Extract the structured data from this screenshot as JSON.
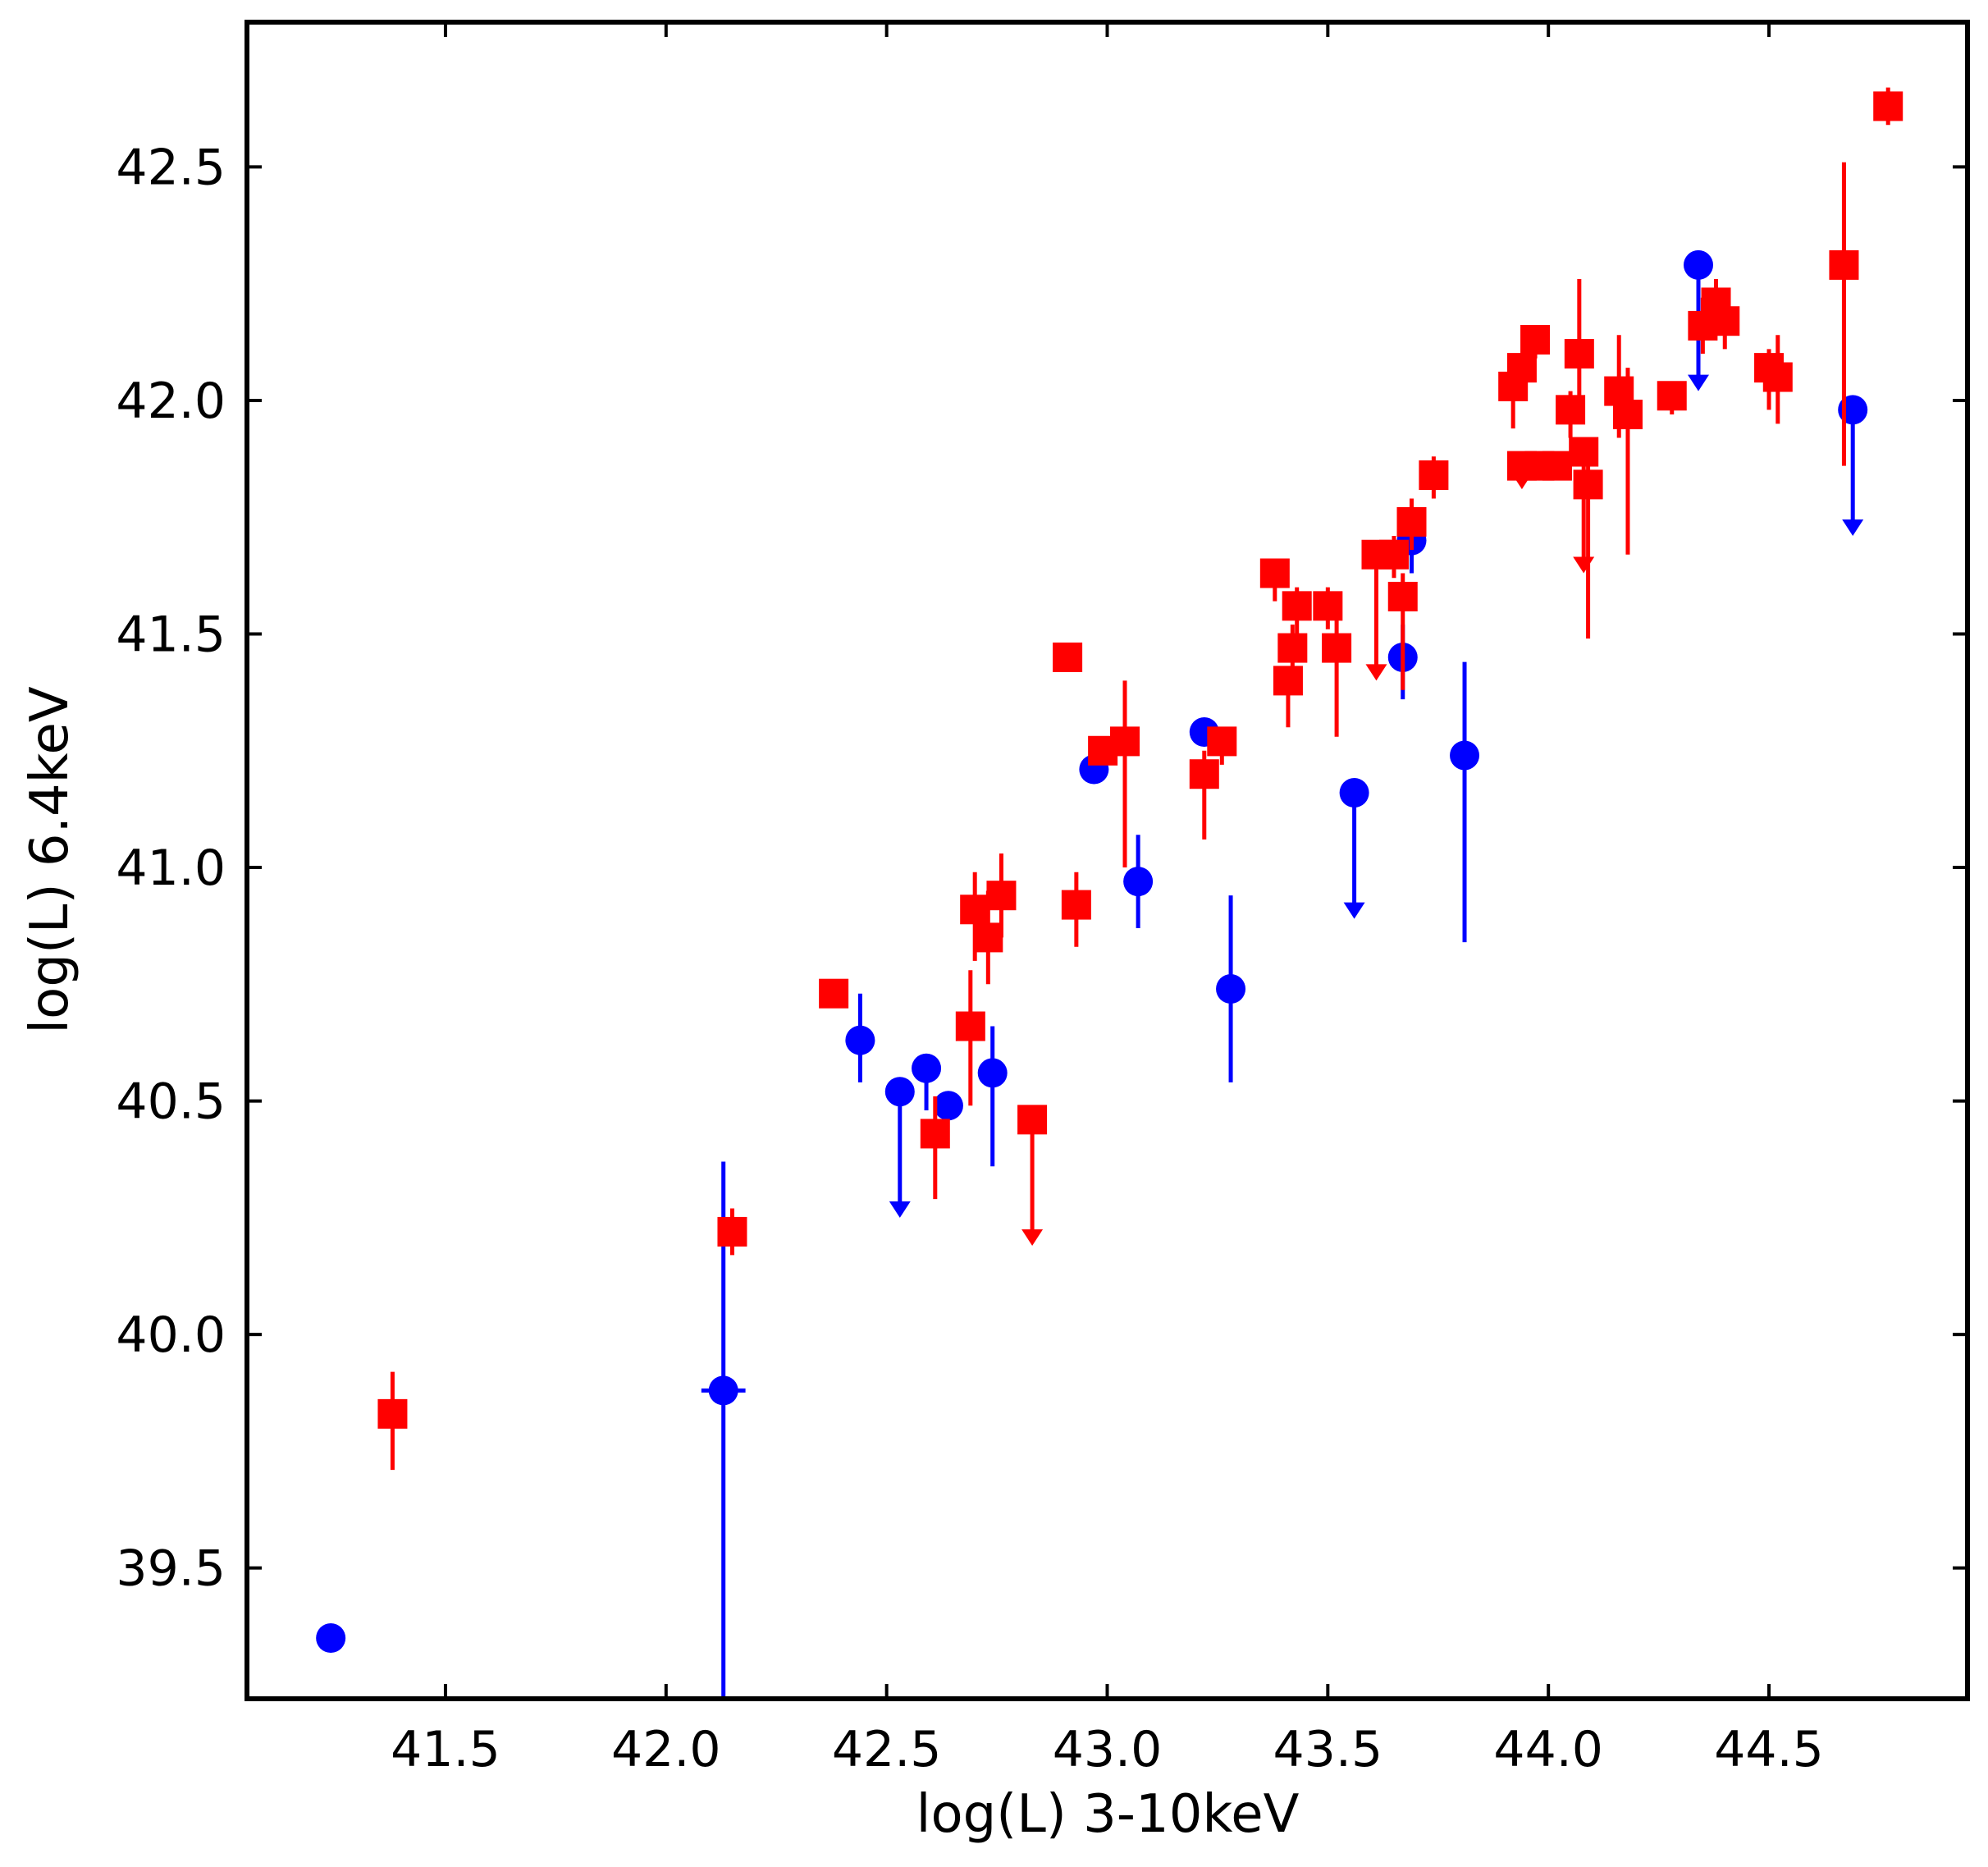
{
  "chart_data": {
    "type": "scatter",
    "xlabel": "log(L) 3-10keV",
    "ylabel": "log(L) 6.4keV",
    "xlim": [
      41.05,
      44.95
    ],
    "ylim": [
      39.22,
      42.81
    ],
    "xticks": [
      "41.5",
      "42.0",
      "42.5",
      "43.0",
      "43.5",
      "44.0",
      "44.5"
    ],
    "yticks": [
      "39.5",
      "40.0",
      "40.5",
      "41.0",
      "41.5",
      "42.0",
      "42.5"
    ],
    "grid": false,
    "legend": "none",
    "series": [
      {
        "marker": "circle",
        "color": "#0000ff",
        "points": [
          {
            "x": 41.24,
            "y": 39.35
          },
          {
            "x": 42.13,
            "y": 39.88,
            "ylo": 39.22,
            "yhi": 40.37,
            "xlo": 42.08,
            "xhi": 42.18
          },
          {
            "x": 42.44,
            "y": 40.63,
            "ylo": 40.54,
            "yhi": 40.73
          },
          {
            "x": 42.53,
            "y": 40.52,
            "upper_limit": true,
            "ylo": 40.25
          },
          {
            "x": 42.59,
            "y": 40.57,
            "ylo": 40.48,
            "yhi": 40.58
          },
          {
            "x": 42.64,
            "y": 40.49
          },
          {
            "x": 42.74,
            "y": 40.56,
            "ylo": 40.36,
            "yhi": 40.66
          },
          {
            "x": 42.97,
            "y": 41.21
          },
          {
            "x": 43.07,
            "y": 40.97,
            "ylo": 40.87,
            "yhi": 41.07
          },
          {
            "x": 43.22,
            "y": 41.29
          },
          {
            "x": 43.28,
            "y": 40.74,
            "ylo": 40.54,
            "yhi": 40.94
          },
          {
            "x": 43.56,
            "y": 41.16,
            "upper_limit": true,
            "ylo": 40.89
          },
          {
            "x": 43.67,
            "y": 41.45,
            "ylo": 41.36,
            "yhi": 41.52
          },
          {
            "x": 43.69,
            "y": 41.7,
            "ylo": 41.63,
            "yhi": 41.79
          },
          {
            "x": 43.81,
            "y": 41.24,
            "ylo": 40.84,
            "yhi": 41.44
          },
          {
            "x": 44.34,
            "y": 42.29,
            "upper_limit": true,
            "ylo": 42.02
          },
          {
            "x": 44.69,
            "y": 41.98,
            "upper_limit": true,
            "ylo": 41.71
          }
        ]
      },
      {
        "marker": "square",
        "color": "#ff0000",
        "points": [
          {
            "x": 41.38,
            "y": 39.83,
            "ylo": 39.71,
            "yhi": 39.92
          },
          {
            "x": 42.15,
            "y": 40.22,
            "ylo": 40.17,
            "yhi": 40.27
          },
          {
            "x": 42.38,
            "y": 40.73
          },
          {
            "x": 42.61,
            "y": 40.43,
            "ylo": 40.29,
            "yhi": 40.51
          },
          {
            "x": 42.69,
            "y": 40.66,
            "ylo": 40.49,
            "yhi": 40.78
          },
          {
            "x": 42.7,
            "y": 40.91,
            "ylo": 40.8,
            "yhi": 40.99
          },
          {
            "x": 42.73,
            "y": 40.85,
            "ylo": 40.75,
            "yhi": 40.95
          },
          {
            "x": 42.76,
            "y": 40.94,
            "ylo": 40.85,
            "yhi": 41.03
          },
          {
            "x": 42.83,
            "y": 40.46,
            "upper_limit": true,
            "ylo": 40.19
          },
          {
            "x": 42.91,
            "y": 41.45,
            "ylo": 41.42,
            "yhi": 41.46
          },
          {
            "x": 42.93,
            "y": 40.92,
            "ylo": 40.83,
            "yhi": 40.99
          },
          {
            "x": 42.99,
            "y": 41.25,
            "ylo": 41.22,
            "yhi": 41.28
          },
          {
            "x": 43.04,
            "y": 41.27,
            "ylo": 41.0,
            "yhi": 41.4
          },
          {
            "x": 43.22,
            "y": 41.2,
            "ylo": 41.06,
            "yhi": 41.25
          },
          {
            "x": 43.26,
            "y": 41.27,
            "ylo": 41.22,
            "yhi": 41.3
          },
          {
            "x": 43.38,
            "y": 41.63,
            "ylo": 41.57,
            "yhi": 41.66
          },
          {
            "x": 43.41,
            "y": 41.4,
            "ylo": 41.3,
            "yhi": 41.43
          },
          {
            "x": 43.42,
            "y": 41.47,
            "ylo": 41.4,
            "yhi": 41.52
          },
          {
            "x": 43.43,
            "y": 41.56,
            "ylo": 41.5,
            "yhi": 41.6
          },
          {
            "x": 43.5,
            "y": 41.56,
            "ylo": 41.51,
            "yhi": 41.6
          },
          {
            "x": 43.52,
            "y": 41.47,
            "ylo": 41.28,
            "yhi": 41.54
          },
          {
            "x": 43.61,
            "y": 41.67,
            "upper_limit": true,
            "ylo": 41.4
          },
          {
            "x": 43.65,
            "y": 41.67,
            "ylo": 41.62,
            "yhi": 41.71
          },
          {
            "x": 43.67,
            "y": 41.58,
            "ylo": 41.38,
            "yhi": 41.63
          },
          {
            "x": 43.69,
            "y": 41.74,
            "ylo": 41.68,
            "yhi": 41.79
          },
          {
            "x": 43.74,
            "y": 41.84,
            "ylo": 41.79,
            "yhi": 41.88
          },
          {
            "x": 43.92,
            "y": 42.03,
            "ylo": 41.94,
            "yhi": 42.07
          },
          {
            "x": 43.94,
            "y": 42.07,
            "ylo": 42.0,
            "yhi": 42.1
          },
          {
            "x": 43.94,
            "y": 41.86,
            "upper_limit": true,
            "ylo": 41.81
          },
          {
            "x": 43.97,
            "y": 42.13,
            "ylo": 42.09,
            "yhi": 42.15
          },
          {
            "x": 43.98,
            "y": 41.86
          },
          {
            "x": 44.02,
            "y": 41.86
          },
          {
            "x": 44.05,
            "y": 41.98,
            "ylo": 41.92,
            "yhi": 42.02
          },
          {
            "x": 44.07,
            "y": 42.1,
            "ylo": 41.99,
            "yhi": 42.26
          },
          {
            "x": 44.08,
            "y": 41.89,
            "upper_limit": true,
            "ylo": 41.63
          },
          {
            "x": 44.09,
            "y": 41.82,
            "ylo": 41.49,
            "yhi": 41.88
          },
          {
            "x": 44.16,
            "y": 42.02,
            "ylo": 41.92,
            "yhi": 42.14
          },
          {
            "x": 44.18,
            "y": 41.97,
            "ylo": 41.67,
            "yhi": 42.07
          },
          {
            "x": 44.28,
            "y": 42.01,
            "ylo": 41.97,
            "yhi": 42.04
          },
          {
            "x": 44.35,
            "y": 42.16,
            "ylo": 42.1,
            "yhi": 42.22
          },
          {
            "x": 44.38,
            "y": 42.21,
            "ylo": 42.15,
            "yhi": 42.26
          },
          {
            "x": 44.4,
            "y": 42.17,
            "ylo": 42.11,
            "yhi": 42.2
          },
          {
            "x": 44.5,
            "y": 42.07,
            "ylo": 41.98,
            "yhi": 42.11
          },
          {
            "x": 44.52,
            "y": 42.05,
            "ylo": 41.95,
            "yhi": 42.14
          },
          {
            "x": 44.67,
            "y": 42.29,
            "ylo": 41.86,
            "yhi": 42.51
          },
          {
            "x": 44.77,
            "y": 42.63,
            "ylo": 42.59,
            "yhi": 42.67
          }
        ]
      }
    ]
  }
}
